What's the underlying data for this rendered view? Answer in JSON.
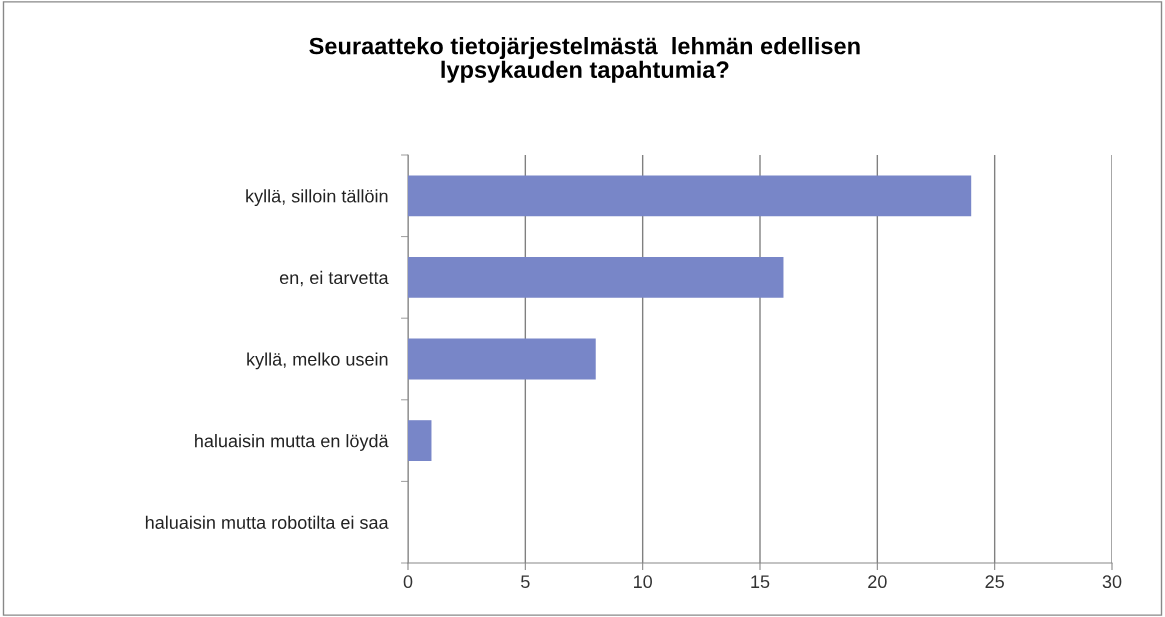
{
  "chart_data": {
    "type": "bar",
    "orientation": "horizontal",
    "title": "Seuraatteko tietojärjestelmästä  lehmän edellisen\nlypsykauden tapahtumia?",
    "categories": [
      "kyllä, silloin tällöin",
      "en, ei tarvetta",
      "kyllä, melko usein",
      "haluaisin mutta en löydä",
      "haluaisin mutta robotilta ei saa"
    ],
    "values": [
      24,
      16,
      8,
      1,
      0
    ],
    "color": "#7886c8",
    "xlim": [
      0,
      30
    ],
    "xticks": [
      0,
      5,
      10,
      15,
      20,
      25,
      30
    ],
    "grid": "x"
  }
}
